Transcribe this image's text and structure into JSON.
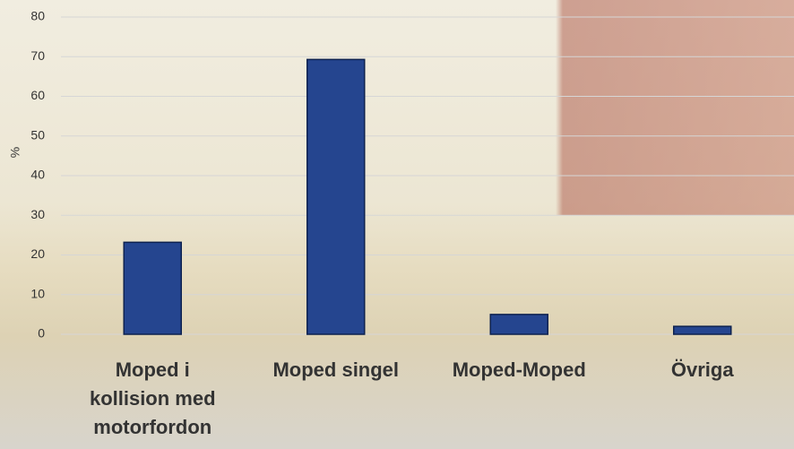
{
  "chart_data": {
    "type": "bar",
    "y_label": "%",
    "categories": [
      "Moped i kollision med motorfordon",
      "Moped singel",
      "Moped-Moped",
      "Övriga"
    ],
    "values": [
      23.2,
      69.3,
      5,
      2
    ],
    "color": "#25458f",
    "ylim": [
      0,
      80
    ],
    "yticks": [
      0,
      10,
      20,
      30,
      40,
      50,
      60,
      70,
      80
    ],
    "grid": true
  }
}
